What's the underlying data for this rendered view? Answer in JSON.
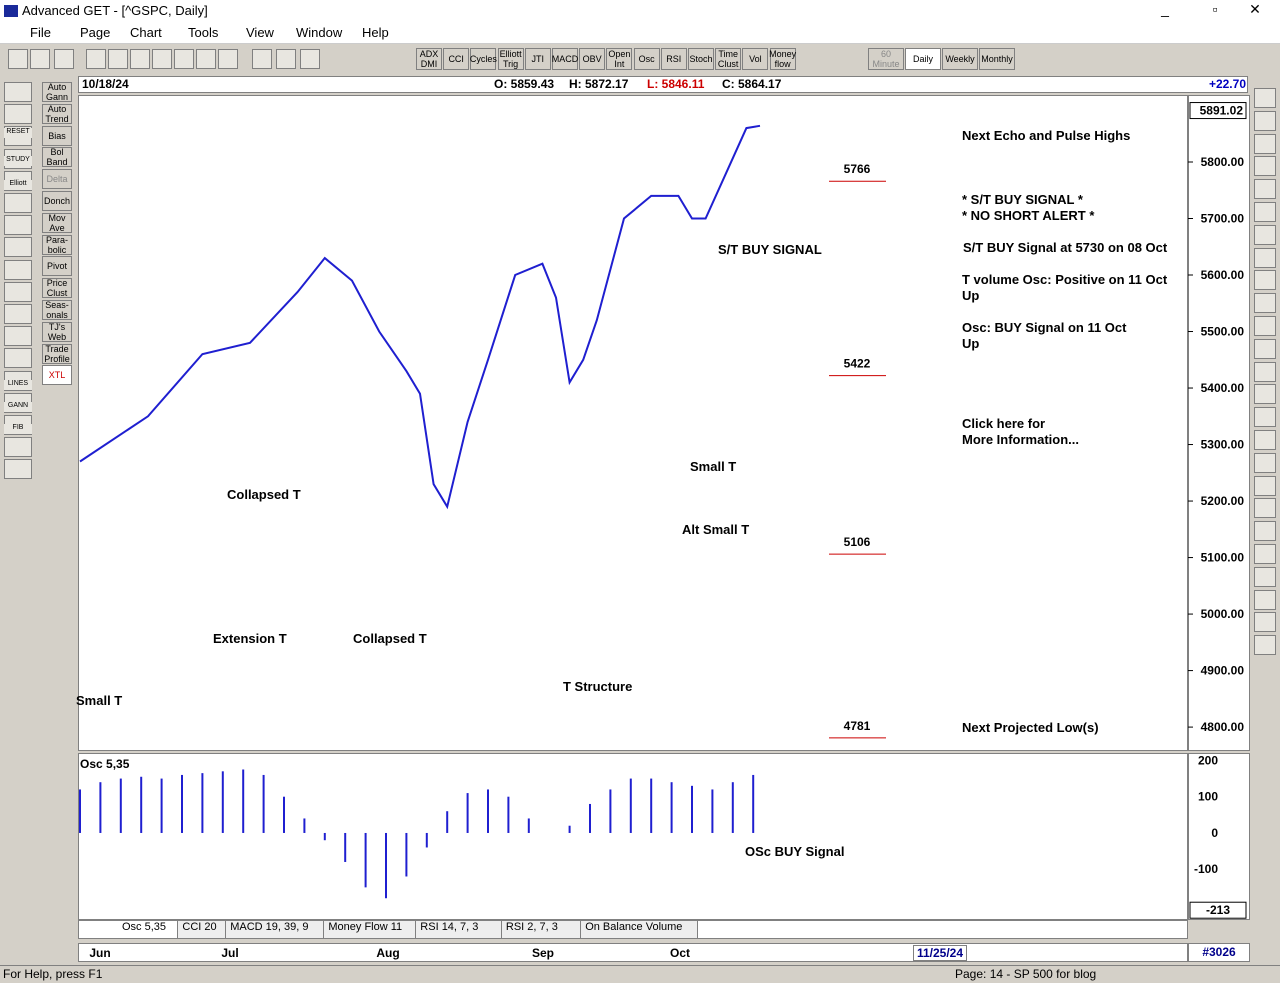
{
  "window": {
    "title": "Advanced GET - [^GSPC, Daily]",
    "menu": [
      "File",
      "Page",
      "Chart",
      "Tools",
      "View",
      "Window",
      "Help"
    ],
    "toolbar": [
      "ADX DMI",
      "CCI",
      "Cycles",
      "Elliott Trig",
      "JTI",
      "MACD",
      "OBV",
      "Open Int",
      "Osc",
      "RSI",
      "Stoch",
      "Time Clust",
      "Vol",
      "Money flow"
    ],
    "timeframes": [
      "60 Minute",
      "Daily",
      "Weekly",
      "Monthly"
    ],
    "studies": [
      "Auto Gann",
      "Auto Trend",
      "Bias",
      "Bol Band",
      "Delta",
      "Donch",
      "Mov Ave",
      "Para-bolic",
      "Pivot",
      "Price Clust",
      "Seas-onals",
      "TJ's Web",
      "Trade Profile",
      "XTL"
    ],
    "left_icons": [
      "RESET",
      "STUDY",
      "Elliott",
      "LINES",
      "GANN",
      "FIB"
    ]
  },
  "info_bar": {
    "date": "10/18/24",
    "open": "O: 5859.43",
    "high": "H: 5872.17",
    "low": "L: 5846.11",
    "close": "C: 5864.17",
    "change": "+22.70"
  },
  "chart_data": {
    "type": "line",
    "x": [
      0,
      10,
      18,
      25,
      32,
      36,
      40,
      44,
      48,
      50,
      52,
      54,
      57,
      60,
      64,
      68,
      70,
      72,
      74,
      76,
      80,
      84,
      88,
      90,
      92,
      95,
      98,
      100
    ],
    "series": [
      {
        "name": "^GSPC",
        "color": "#1f1fd0",
        "values": [
          5270,
          5350,
          5460,
          5480,
          5570,
          5630,
          5590,
          5500,
          5430,
          5390,
          5230,
          5190,
          5340,
          5450,
          5600,
          5620,
          5560,
          5410,
          5450,
          5520,
          5700,
          5740,
          5740,
          5700,
          5700,
          5780,
          5860,
          5864
        ]
      }
    ],
    "ylim": [
      4763,
      5915
    ],
    "yticks": [
      {
        "value": 4800,
        "label": "4800.00"
      },
      {
        "value": 4900,
        "label": "4900.00"
      },
      {
        "value": 5000,
        "label": "5000.00"
      },
      {
        "value": 5100,
        "label": "5100.00"
      },
      {
        "value": 5200,
        "label": "5200.00"
      },
      {
        "value": 5300,
        "label": "5300.00"
      },
      {
        "value": 5400,
        "label": "5400.00"
      },
      {
        "value": 5500,
        "label": "5500.00"
      },
      {
        "value": 5600,
        "label": "5600.00"
      },
      {
        "value": 5700,
        "label": "5700.00"
      },
      {
        "value": 5800,
        "label": "5800.00"
      }
    ],
    "last_price": {
      "value": 5891.02,
      "label": "5891.02"
    },
    "levels": [
      5766,
      5422,
      5106,
      4781
    ],
    "months": [
      "Jun",
      "Jul",
      "Aug",
      "Sep",
      "Oct"
    ],
    "annotations": [
      "Next Echo and Pulse Highs",
      "* S/T BUY SIGNAL *",
      "* NO SHORT ALERT *",
      "S/T BUY Signal at 5730 on 08 Oct",
      "T volume Osc: Positive on 11 Oct",
      "Up",
      "Osc: BUY Signal on 11 Oct",
      "Up",
      "Click here for",
      "More Information...",
      "Next Projected Low(s)",
      "S/T BUY SIGNAL",
      "Collapsed T",
      "Extension T",
      "Collapsed T",
      "Small T",
      "T Structure",
      "Small T",
      "Alt Small T"
    ]
  },
  "oscillator": {
    "title": "Osc 5,35",
    "signal": "OSc BUY Signal",
    "x": [
      0,
      3,
      6,
      9,
      12,
      15,
      18,
      21,
      24,
      27,
      30,
      33,
      36,
      39,
      42,
      45,
      48,
      51,
      54,
      57,
      60,
      63,
      66,
      69,
      72,
      75,
      78,
      81,
      84,
      87,
      90,
      93,
      96,
      99
    ],
    "values": [
      120,
      140,
      150,
      155,
      150,
      160,
      165,
      170,
      175,
      160,
      100,
      40,
      -20,
      -80,
      -150,
      -180,
      -120,
      -40,
      60,
      110,
      120,
      100,
      40,
      0,
      20,
      80,
      120,
      150,
      150,
      140,
      130,
      120,
      140,
      160
    ],
    "ylim": [
      -240,
      215
    ],
    "yticks": [
      -100,
      0,
      100,
      200
    ],
    "min_label": -213
  },
  "tabs": [
    "Osc 5,35",
    "CCI 20",
    "MACD 19, 39, 9",
    "Money Flow 11",
    "RSI 14, 7, 3",
    "RSI 2, 7, 3",
    "On Balance Volume"
  ],
  "status": {
    "help": "For Help, press F1",
    "page": "Page: 14 - SP 500 for blog",
    "date": "11/25/24",
    "count": "#3026"
  }
}
